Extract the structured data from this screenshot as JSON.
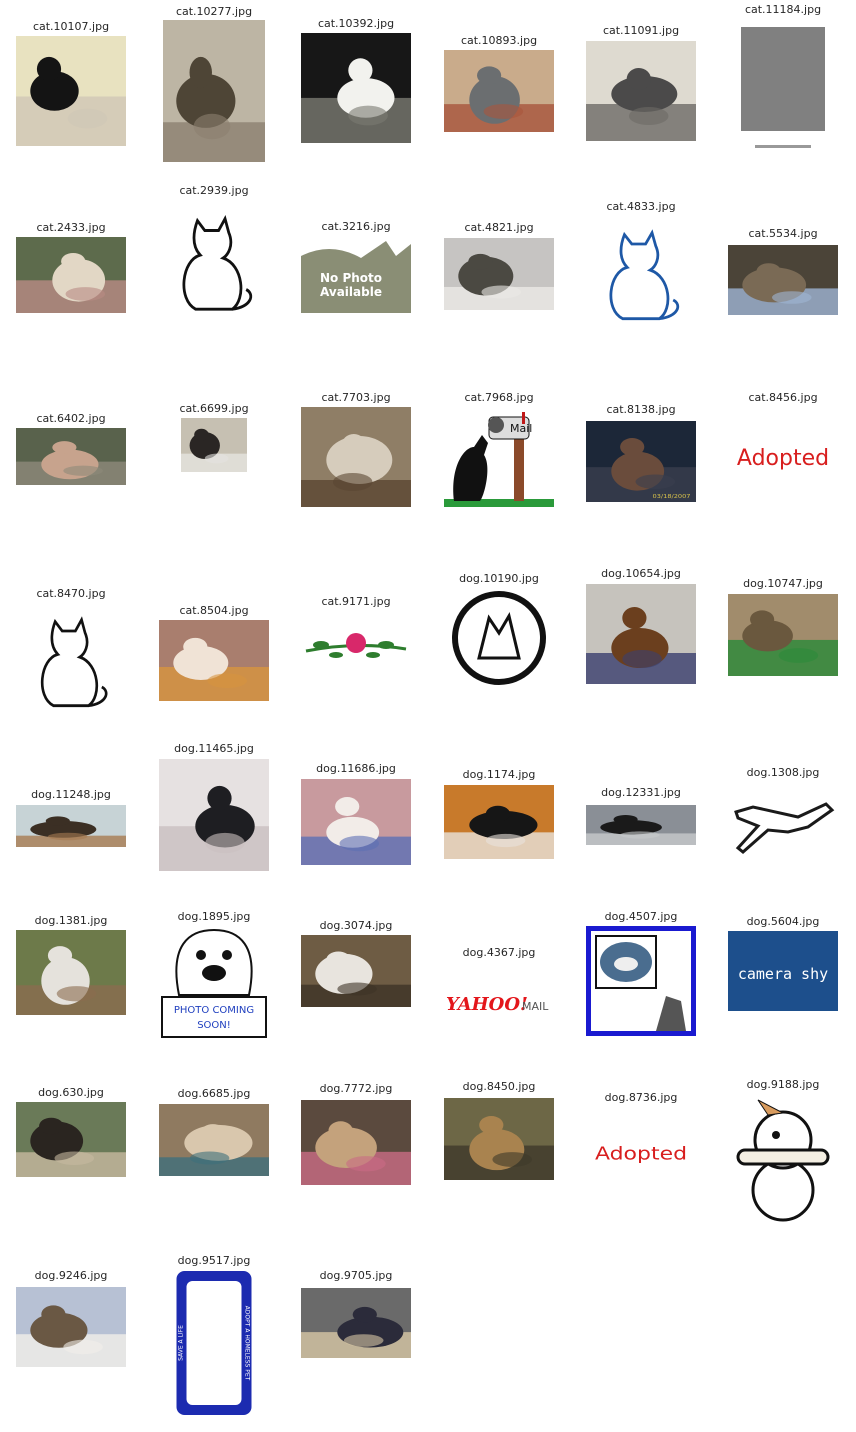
{
  "title": "",
  "grid": {
    "columns": 6,
    "items": [
      {
        "filename": "cat.10107.jpg",
        "label": "cat",
        "kind": "photo",
        "palette": [
          "#e8e2c0",
          "#141414",
          "#cfc7b5"
        ]
      },
      {
        "filename": "cat.10277.jpg",
        "label": "cat",
        "kind": "photo",
        "palette": [
          "#bdb5a4",
          "#4e4536",
          "#8c8170"
        ]
      },
      {
        "filename": "cat.10392.jpg",
        "label": "cat",
        "kind": "photo",
        "palette": [
          "#171717",
          "#f2f2ee",
          "#7a7a72"
        ]
      },
      {
        "filename": "cat.10893.jpg",
        "label": "cat",
        "kind": "photo",
        "palette": [
          "#c9ab8b",
          "#6b6e70",
          "#a8553c"
        ]
      },
      {
        "filename": "cat.11091.jpg",
        "label": "cat",
        "kind": "photo",
        "palette": [
          "#dedad0",
          "#4b4a4a",
          "#6d6a66"
        ]
      },
      {
        "filename": "cat.11184.jpg",
        "label": "cat",
        "kind": "placeholder",
        "palette": [
          "#ffffff",
          "#808080",
          "#808080"
        ]
      },
      {
        "filename": "cat.2433.jpg",
        "label": "cat",
        "kind": "photo",
        "palette": [
          "#5d6b4c",
          "#e2d7c5",
          "#b98b84"
        ]
      },
      {
        "filename": "cat.2939.jpg",
        "label": "cat",
        "kind": "drawing",
        "palette": [
          "#ffffff",
          "#111111",
          "#ffffff"
        ]
      },
      {
        "filename": "cat.3216.jpg",
        "label": "cat",
        "kind": "placeholder",
        "palette": [
          "#ffffff",
          "#8a8e75",
          "#8a8e75"
        ],
        "overlay_text": [
          "No Photo",
          "Available"
        ]
      },
      {
        "filename": "cat.4821.jpg",
        "label": "cat",
        "kind": "photo",
        "palette": [
          "#c6c4c2",
          "#4b4942",
          "#ebeae6"
        ]
      },
      {
        "filename": "cat.4833.jpg",
        "label": "cat",
        "kind": "drawing",
        "palette": [
          "#ffffff",
          "#1e58a6",
          "#ffffff"
        ]
      },
      {
        "filename": "cat.5534.jpg",
        "label": "cat",
        "kind": "photo",
        "palette": [
          "#4b4438",
          "#7a6a55",
          "#9fb5d4"
        ]
      },
      {
        "filename": "cat.6402.jpg",
        "label": "cat",
        "kind": "photo",
        "palette": [
          "#59624c",
          "#c7a38d",
          "#8d8a7a"
        ]
      },
      {
        "filename": "cat.6699.jpg",
        "label": "cat",
        "kind": "photo",
        "palette": [
          "#c6c0b2",
          "#2a2624",
          "#e5e3df"
        ]
      },
      {
        "filename": "cat.7703.jpg",
        "label": "cat",
        "kind": "photo",
        "palette": [
          "#8f7e66",
          "#d6ccbc",
          "#5a4632"
        ]
      },
      {
        "filename": "cat.7968.jpg",
        "label": "cat",
        "kind": "drawing",
        "palette": [
          "#ffffff",
          "#111111",
          "#8b4a2a"
        ],
        "overlay_text": [
          "Mail"
        ]
      },
      {
        "filename": "cat.8138.jpg",
        "label": "cat",
        "kind": "photo",
        "palette": [
          "#1c2738",
          "#6a4c3c",
          "#3a3f4e"
        ],
        "overlay_text": [
          "03/18/2007"
        ]
      },
      {
        "filename": "cat.8456.jpg",
        "label": "cat",
        "kind": "text-image",
        "palette": [
          "#ffffff",
          "#d81e1e",
          "#ffffff"
        ],
        "overlay_text": [
          "Adopted"
        ]
      },
      {
        "filename": "cat.8470.jpg",
        "label": "cat",
        "kind": "drawing",
        "palette": [
          "#ffffff",
          "#111111",
          "#ffffff"
        ]
      },
      {
        "filename": "cat.8504.jpg",
        "label": "cat",
        "kind": "photo",
        "palette": [
          "#a97e6e",
          "#f0e3d6",
          "#d7953f"
        ]
      },
      {
        "filename": "cat.9171.jpg",
        "label": "cat",
        "kind": "drawing",
        "palette": [
          "#ffffff",
          "#2e7d2e",
          "#d8286a"
        ]
      },
      {
        "filename": "dog.10190.jpg",
        "label": "dog",
        "kind": "drawing",
        "palette": [
          "#ffffff",
          "#111111",
          "#ffffff"
        ]
      },
      {
        "filename": "dog.10654.jpg",
        "label": "dog",
        "kind": "photo",
        "palette": [
          "#c6c3bd",
          "#6b3f1e",
          "#3a3f6e"
        ]
      },
      {
        "filename": "dog.10747.jpg",
        "label": "dog",
        "kind": "photo",
        "palette": [
          "#a18c6c",
          "#6a583e",
          "#2b8a3a"
        ]
      },
      {
        "filename": "dog.11248.jpg",
        "label": "dog",
        "kind": "photo",
        "palette": [
          "#c7d3d6",
          "#3b2f24",
          "#a77c51"
        ]
      },
      {
        "filename": "dog.11465.jpg",
        "label": "dog",
        "kind": "photo",
        "palette": [
          "#e6e1e1",
          "#1e1e22",
          "#c9bfc0"
        ]
      },
      {
        "filename": "dog.11686.jpg",
        "label": "dog",
        "kind": "photo",
        "palette": [
          "#c89a9e",
          "#f2ece8",
          "#5d6fb4"
        ]
      },
      {
        "filename": "dog.1174.jpg",
        "label": "dog",
        "kind": "photo",
        "palette": [
          "#c87a2b",
          "#161616",
          "#e9e3dc"
        ]
      },
      {
        "filename": "dog.12331.jpg",
        "label": "dog",
        "kind": "photo",
        "palette": [
          "#8a8f96",
          "#1a1a1a",
          "#c7c9cc"
        ]
      },
      {
        "filename": "dog.1308.jpg",
        "label": "dog",
        "kind": "drawing",
        "palette": [
          "#ffffff",
          "#1a1a1a",
          "#ffffff"
        ]
      },
      {
        "filename": "dog.1381.jpg",
        "label": "dog",
        "kind": "photo",
        "palette": [
          "#6d7a4a",
          "#e5e2dc",
          "#8a6d4f"
        ]
      },
      {
        "filename": "dog.1895.jpg",
        "label": "dog",
        "kind": "drawing",
        "palette": [
          "#ffffff",
          "#111111",
          "#1f3fbf"
        ],
        "overlay_text": [
          "PHOTO COMING",
          "SOON!"
        ]
      },
      {
        "filename": "dog.3074.jpg",
        "label": "dog",
        "kind": "photo",
        "palette": [
          "#6e5c44",
          "#e8e4de",
          "#3d3327"
        ]
      },
      {
        "filename": "dog.4367.jpg",
        "label": "dog",
        "kind": "text-image",
        "palette": [
          "#ffffff",
          "#e3161b",
          "#555555"
        ],
        "overlay_text": [
          "YAHOO!",
          "MAIL"
        ]
      },
      {
        "filename": "dog.4507.jpg",
        "label": "dog",
        "kind": "framed",
        "palette": [
          "#ffffff",
          "#1a1ad0",
          "#4a6d8f"
        ]
      },
      {
        "filename": "dog.5604.jpg",
        "label": "dog",
        "kind": "text-image",
        "palette": [
          "#1d4f8c",
          "#ffffff",
          "#14396a"
        ],
        "overlay_text": [
          "camera shy"
        ]
      },
      {
        "filename": "dog.630.jpg",
        "label": "dog",
        "kind": "photo",
        "palette": [
          "#6a7a58",
          "#2a2520",
          "#c7b9a0"
        ]
      },
      {
        "filename": "dog.6685.jpg",
        "label": "dog",
        "kind": "photo",
        "palette": [
          "#8f7a60",
          "#d9c7ad",
          "#3e6f7c"
        ]
      },
      {
        "filename": "dog.7772.jpg",
        "label": "dog",
        "kind": "photo",
        "palette": [
          "#5b4a3e",
          "#c4a27c",
          "#c96b85"
        ]
      },
      {
        "filename": "dog.8450.jpg",
        "label": "dog",
        "kind": "photo",
        "palette": [
          "#6d6746",
          "#a9834f",
          "#3f3a2a"
        ]
      },
      {
        "filename": "dog.8736.jpg",
        "label": "dog",
        "kind": "text-image",
        "palette": [
          "#ffffff",
          "#d81e1e",
          "#ffffff"
        ],
        "overlay_text": [
          "Adopted"
        ]
      },
      {
        "filename": "dog.9188.jpg",
        "label": "dog",
        "kind": "drawing",
        "palette": [
          "#ffffff",
          "#111111",
          "#d89b5e"
        ]
      },
      {
        "filename": "dog.9246.jpg",
        "label": "dog",
        "kind": "photo",
        "palette": [
          "#b7c1d4",
          "#6a5844",
          "#f1efe9"
        ]
      },
      {
        "filename": "dog.9517.jpg",
        "label": "dog",
        "kind": "frame",
        "palette": [
          "#ffffff",
          "#1c2bb0",
          "#ffffff"
        ],
        "overlay_text": [
          "SAVE A LIFE",
          "ADOPT A HOMELESS PET"
        ]
      },
      {
        "filename": "dog.9705.jpg",
        "label": "dog",
        "kind": "photo",
        "palette": [
          "#6a6a6a",
          "#2b2b3a",
          "#d7c7a5"
        ]
      }
    ]
  }
}
